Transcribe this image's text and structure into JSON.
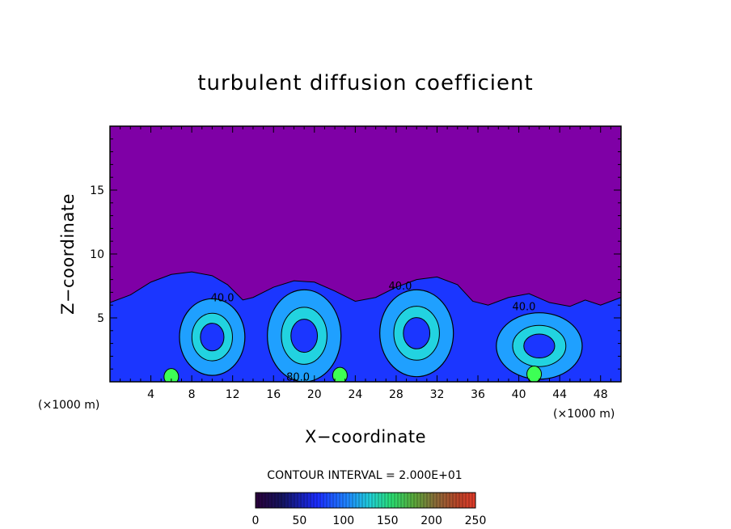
{
  "chart_data": {
    "type": "heatmap",
    "title": "turbulent diffusion coefficient",
    "xlabel": "X−coordinate",
    "ylabel": "Z−coordinate",
    "x_unit_left": "(×1000 m)",
    "x_unit_right": "(×1000 m)",
    "xlim": [
      0,
      50
    ],
    "ylim": [
      0,
      20
    ],
    "x_ticks": [
      4,
      8,
      12,
      16,
      20,
      24,
      28,
      32,
      36,
      40,
      44,
      48
    ],
    "y_ticks": [
      5,
      10,
      15
    ],
    "contour_interval_label": "CONTOUR INTERVAL = 2.000E+01",
    "contour_labels": [
      {
        "text": "40.0",
        "x": 11.0,
        "z": 6.3
      },
      {
        "text": "40.0",
        "x": 28.4,
        "z": 7.2
      },
      {
        "text": "40.0",
        "x": 40.5,
        "z": 5.6
      },
      {
        "text": "80.0",
        "x": 18.4,
        "z": 0.1
      }
    ],
    "colorbar": {
      "min": 0,
      "max": 250,
      "ticks": [
        0,
        50,
        100,
        150,
        200,
        250
      ]
    },
    "boundary_layer_top_z": [
      [
        0,
        6.2
      ],
      [
        2,
        6.8
      ],
      [
        4,
        7.8
      ],
      [
        6,
        8.4
      ],
      [
        8,
        8.6
      ],
      [
        10,
        8.3
      ],
      [
        11.5,
        7.6
      ],
      [
        13,
        6.4
      ],
      [
        14,
        6.6
      ],
      [
        16,
        7.4
      ],
      [
        18,
        7.9
      ],
      [
        20,
        7.8
      ],
      [
        22,
        7.1
      ],
      [
        24,
        6.3
      ],
      [
        26,
        6.6
      ],
      [
        28,
        7.4
      ],
      [
        30,
        8.0
      ],
      [
        32,
        8.2
      ],
      [
        34,
        7.6
      ],
      [
        35.5,
        6.3
      ],
      [
        37,
        6.0
      ],
      [
        39,
        6.6
      ],
      [
        41,
        6.9
      ],
      [
        43,
        6.2
      ],
      [
        45,
        5.9
      ],
      [
        46.5,
        6.4
      ],
      [
        48,
        6.0
      ],
      [
        50,
        6.6
      ]
    ],
    "colors": {
      "background": "#7f00a6",
      "low": "#1b36ff",
      "mid": "#1fa0ff",
      "high": "#22d3e0",
      "peak": "#3dff55"
    }
  }
}
